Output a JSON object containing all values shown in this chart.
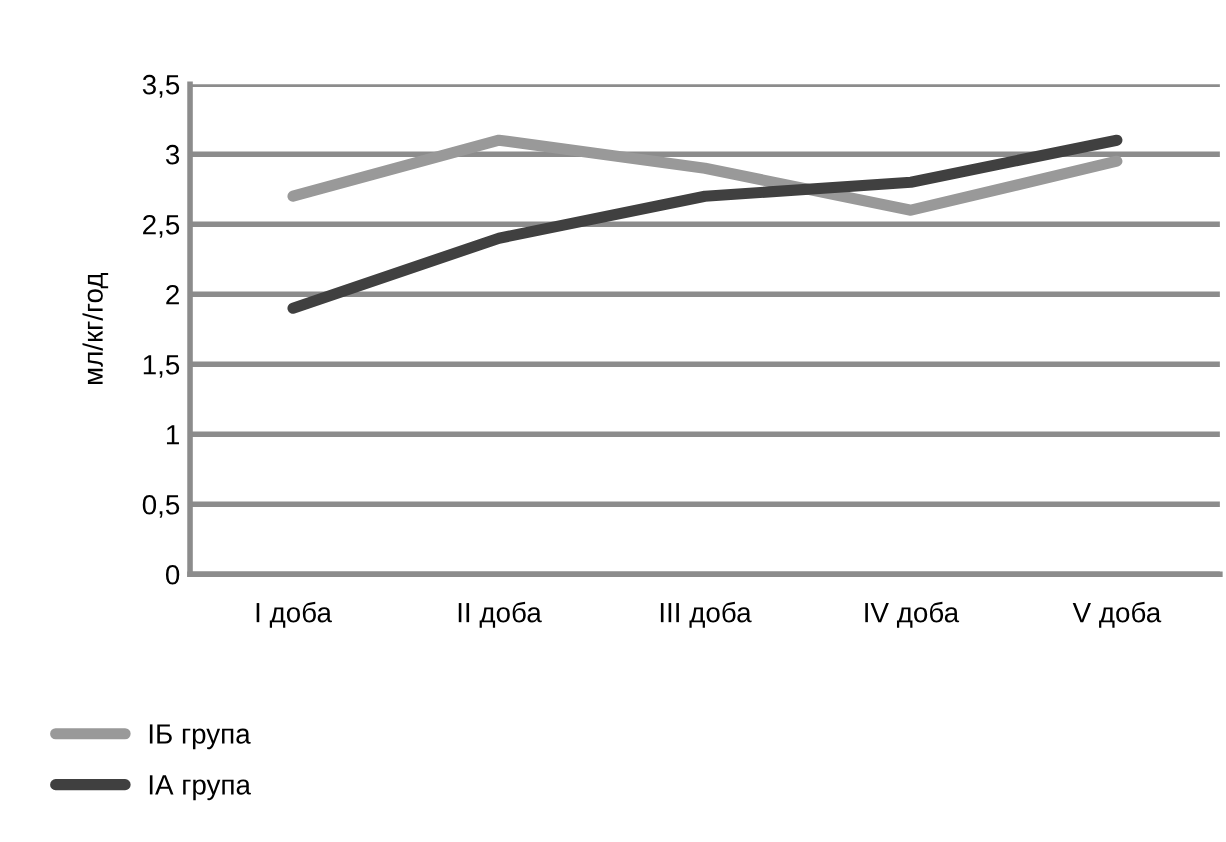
{
  "chart_data": {
    "type": "line",
    "ylabel": "мл/кг/год",
    "categories": [
      "I доба",
      "II доба",
      "III доба",
      "IV доба",
      "V доба"
    ],
    "series": [
      {
        "name": "ІБ група",
        "color": "#999999",
        "values": [
          2.7,
          3.1,
          2.9,
          2.6,
          2.95
        ]
      },
      {
        "name": "ІА група",
        "color": "#404040",
        "values": [
          1.9,
          2.4,
          2.7,
          2.8,
          3.1
        ]
      }
    ],
    "ylim": [
      0,
      3.5
    ],
    "yticks": [
      0,
      {
        "value": 0.5,
        "label": "0,5"
      },
      1,
      {
        "value": 1.5,
        "label": "1,5"
      },
      2,
      {
        "value": 2.5,
        "label": "2,5"
      },
      3,
      {
        "value": 3.5,
        "label": "3,5"
      }
    ],
    "grid": "y",
    "legend": "bottom left",
    "line_style": "solid",
    "marker": "none"
  }
}
